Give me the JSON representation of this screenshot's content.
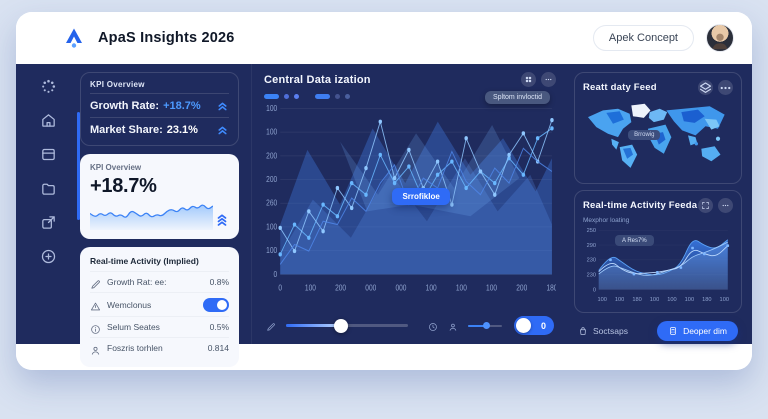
{
  "header": {
    "title": "ApaS Insights 2026",
    "action_button": "Apek Concept",
    "logo_icon": "arrow-up-logo-icon",
    "avatar_icon": "user-avatar"
  },
  "sidebar": {
    "icons": [
      "loader-icon",
      "home-icon",
      "layout-icon",
      "folder-icon",
      "share-icon",
      "plus-circle-icon"
    ]
  },
  "kpi_panel": {
    "title": "KPI Overview",
    "rows": [
      {
        "label": "Growth Rate:",
        "value": "+18.7%",
        "trend_icon": "chevrons-up-icon"
      },
      {
        "label": "Market Share:",
        "value": "23.1%",
        "trend_icon": "chevrons-up-icon"
      }
    ]
  },
  "kpi_card": {
    "title": "KPI Overview",
    "value": "+18.7%",
    "trend_icon": "chevrons-up-3-icon"
  },
  "activity_card": {
    "title": "Real-time Activity (Implied)",
    "rows": [
      {
        "icon": "pen-icon",
        "label": "Growth Rat: ee:",
        "value": "0.8%"
      },
      {
        "icon": "warning-icon",
        "label": "Wemclonus",
        "toggle": true
      },
      {
        "icon": "info-icon",
        "label": "Selum Seates",
        "value": "0.5%"
      },
      {
        "icon": "user-icon",
        "label": "Foszris torhlen",
        "value": "0.814"
      }
    ]
  },
  "central_panel": {
    "title": "Central Data ization",
    "buttons": [
      "grid-icon",
      "more-icon"
    ],
    "tooltip": "Spltom invloctid",
    "badge": "Srrofikloe",
    "legend": [
      {
        "shape": "pill",
        "color": "#3b82f6"
      },
      {
        "shape": "dot",
        "color": "#4f6ed9"
      },
      {
        "shape": "dot",
        "color": "#5b7ff0"
      },
      {
        "shape": "gap",
        "color": ""
      },
      {
        "shape": "pill",
        "color": "#3f7ef2"
      },
      {
        "shape": "dot",
        "color": "#44538f"
      },
      {
        "shape": "dot",
        "color": "#4a5f9e"
      }
    ]
  },
  "map_panel": {
    "title": "Reatt daty Feed",
    "buttons": [
      "layers-icon",
      "more-icon"
    ],
    "tooltip": "Brrowig"
  },
  "feed_panel": {
    "title": "Real-time Activity Feeda",
    "buttons": [
      "expand-icon",
      "more-icon"
    ],
    "subtitle": "Mexphor loating",
    "tooltip": "A Res7%"
  },
  "right_footer": {
    "link_icon": "bag-icon",
    "link_label": "Soctsaps",
    "button_icon": "calc-icon",
    "button_label": "Deoper dim"
  },
  "controls": {
    "left_icon": "pen-icon",
    "mid_icons": [
      "clock-icon",
      "person-icon"
    ],
    "toggle_value": "0"
  },
  "chart_data": [
    {
      "id": "kpi-sparkline",
      "type": "area",
      "title": "KPI Overview",
      "values": [
        40,
        28,
        42,
        32,
        45,
        30,
        38,
        26,
        48,
        40,
        30,
        44,
        28,
        38,
        32,
        46,
        52,
        42,
        58,
        46,
        62,
        52,
        66,
        50,
        60
      ],
      "line_color": "#3b82f6",
      "fill_color": "#60a5fa"
    },
    {
      "id": "central-mesh",
      "type": "line",
      "title": "Central Data ization",
      "y_ticks_top_to_bottom": [
        "100",
        "100",
        "200",
        "200",
        "260",
        "100",
        "100",
        "0"
      ],
      "x_ticks": [
        "0",
        "100",
        "200",
        "000",
        "000",
        "100",
        "100",
        "100",
        "200",
        "180"
      ],
      "grid": true,
      "badge": "Srrofikloe",
      "series": [
        {
          "name": "series-1",
          "color": "#69b7ff",
          "dots": true,
          "values": [
            12,
            30,
            22,
            42,
            35,
            55,
            48,
            72,
            55,
            65,
            45,
            60,
            68,
            52,
            62,
            55,
            70,
            60,
            82,
            88
          ]
        },
        {
          "name": "series-2",
          "color": "#8fc7ff",
          "dots": true,
          "values": [
            28,
            14,
            38,
            26,
            52,
            40,
            64,
            92,
            58,
            75,
            52,
            68,
            42,
            82,
            62,
            48,
            72,
            85,
            68,
            93
          ]
        },
        {
          "name": "series-3",
          "color": "#4f86e8",
          "dots": false,
          "values": [
            6,
            18,
            14,
            32,
            30,
            46,
            38,
            55,
            66,
            42,
            58,
            52,
            74,
            56,
            48,
            64,
            55,
            76,
            68,
            62
          ]
        }
      ],
      "areas": [
        {
          "fill": "rgba(64,122,220,0.38)",
          "points": [
            [
              0,
              70
            ],
            [
              10,
              25
            ],
            [
              22,
              58
            ],
            [
              34,
              12
            ],
            [
              46,
              45
            ],
            [
              58,
              8
            ],
            [
              70,
              40
            ],
            [
              82,
              18
            ],
            [
              94,
              50
            ],
            [
              100,
              30
            ],
            [
              100,
              100
            ],
            [
              0,
              100
            ]
          ]
        },
        {
          "fill": "rgba(96,156,255,0.22)",
          "points": [
            [
              0,
              88
            ],
            [
              12,
              55
            ],
            [
              26,
              78
            ],
            [
              40,
              38
            ],
            [
              54,
              68
            ],
            [
              68,
              30
            ],
            [
              80,
              62
            ],
            [
              92,
              40
            ],
            [
              100,
              70
            ],
            [
              100,
              100
            ],
            [
              0,
              100
            ]
          ]
        },
        {
          "fill": "rgba(120,180,255,0.20)",
          "points": [
            [
              22,
              20
            ],
            [
              36,
              52
            ],
            [
              50,
              15
            ],
            [
              64,
              48
            ],
            [
              78,
              10
            ],
            [
              88,
              42
            ],
            [
              70,
              65
            ],
            [
              48,
              58
            ],
            [
              32,
              62
            ]
          ]
        }
      ]
    },
    {
      "id": "activity-feed",
      "type": "area",
      "title": "Real-time Activity Feeda",
      "y_ticks_top_to_bottom": [
        "250",
        "290",
        "230",
        "230",
        "0"
      ],
      "x_ticks": [
        "100",
        "100",
        "180",
        "100",
        "100",
        "100",
        "180",
        "100"
      ],
      "tooltip": "A Res7%",
      "series": [
        {
          "name": "area-main",
          "color": "#5aa2f7",
          "fill": "gradient",
          "smooth": true,
          "values": [
            32,
            60,
            46,
            32,
            26,
            24,
            30,
            42,
            88,
            74,
            68,
            84
          ]
        },
        {
          "name": "area-soft",
          "color": "#9ec9fb",
          "fill": "rgba(147,197,253,0.22)",
          "smooth": true,
          "values": [
            26,
            42,
            36,
            28,
            23,
            26,
            33,
            39,
            56,
            62,
            70,
            80
          ]
        },
        {
          "name": "dot-line",
          "color": "#bcd9ff",
          "dots": true,
          "smooth": true,
          "values": [
            30,
            50,
            33,
            26,
            28,
            29,
            33,
            37,
            70,
            60,
            55,
            74
          ]
        }
      ]
    }
  ]
}
